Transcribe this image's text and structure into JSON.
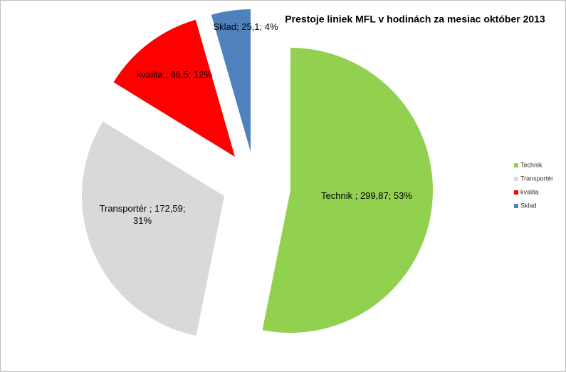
{
  "chart_data": {
    "type": "pie",
    "title": "Prestoje liniek MFL v hodinách za mesiac október 2013",
    "categories": [
      "Technik",
      "Transportér",
      "kvalita",
      "Sklad"
    ],
    "values": [
      299.87,
      172.59,
      66.5,
      25.1
    ],
    "value_labels": [
      "Technik ; 299,87; 53%",
      "Transportér ; 172,59; 31%",
      "kvalita ; 66,5; 12%",
      "Sklad; 25,1; 4%"
    ],
    "colors": [
      "#92d050",
      "#d9d9d9",
      "#ff0000",
      "#4f81bd"
    ],
    "legend": "right"
  }
}
